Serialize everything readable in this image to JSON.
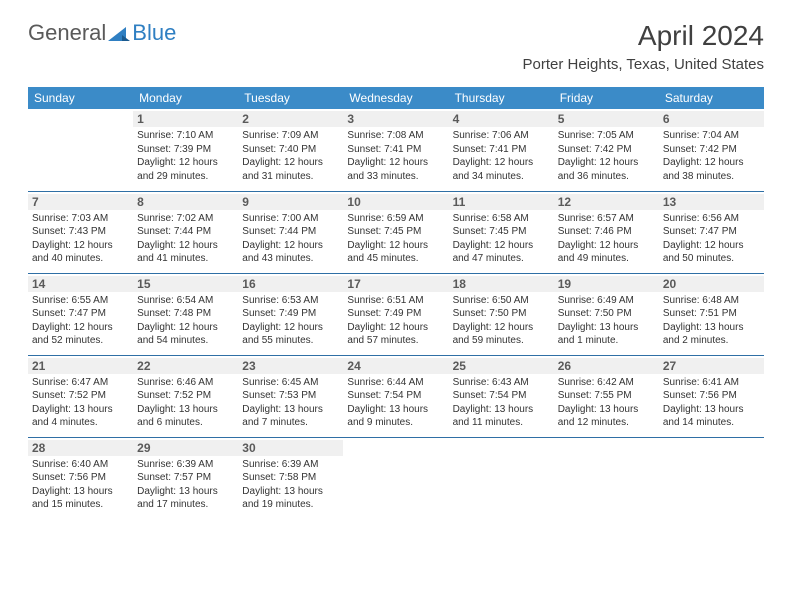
{
  "brand": {
    "part1": "General",
    "part2": "Blue"
  },
  "title": "April 2024",
  "location": "Porter Heights, Texas, United States",
  "colors": {
    "header_bg": "#3b8bc8",
    "header_text": "#ffffff",
    "row_border": "#2f6fa5",
    "daynum_bg": "#f0f0f0",
    "text": "#333333",
    "title_text": "#404040",
    "logo_gray": "#5a5a5a",
    "logo_blue": "#2f7fc2"
  },
  "weekdays": [
    "Sunday",
    "Monday",
    "Tuesday",
    "Wednesday",
    "Thursday",
    "Friday",
    "Saturday"
  ],
  "weeks": [
    [
      null,
      {
        "n": "1",
        "sr": "7:10 AM",
        "ss": "7:39 PM",
        "dl": "12 hours and 29 minutes."
      },
      {
        "n": "2",
        "sr": "7:09 AM",
        "ss": "7:40 PM",
        "dl": "12 hours and 31 minutes."
      },
      {
        "n": "3",
        "sr": "7:08 AM",
        "ss": "7:41 PM",
        "dl": "12 hours and 33 minutes."
      },
      {
        "n": "4",
        "sr": "7:06 AM",
        "ss": "7:41 PM",
        "dl": "12 hours and 34 minutes."
      },
      {
        "n": "5",
        "sr": "7:05 AM",
        "ss": "7:42 PM",
        "dl": "12 hours and 36 minutes."
      },
      {
        "n": "6",
        "sr": "7:04 AM",
        "ss": "7:42 PM",
        "dl": "12 hours and 38 minutes."
      }
    ],
    [
      {
        "n": "7",
        "sr": "7:03 AM",
        "ss": "7:43 PM",
        "dl": "12 hours and 40 minutes."
      },
      {
        "n": "8",
        "sr": "7:02 AM",
        "ss": "7:44 PM",
        "dl": "12 hours and 41 minutes."
      },
      {
        "n": "9",
        "sr": "7:00 AM",
        "ss": "7:44 PM",
        "dl": "12 hours and 43 minutes."
      },
      {
        "n": "10",
        "sr": "6:59 AM",
        "ss": "7:45 PM",
        "dl": "12 hours and 45 minutes."
      },
      {
        "n": "11",
        "sr": "6:58 AM",
        "ss": "7:45 PM",
        "dl": "12 hours and 47 minutes."
      },
      {
        "n": "12",
        "sr": "6:57 AM",
        "ss": "7:46 PM",
        "dl": "12 hours and 49 minutes."
      },
      {
        "n": "13",
        "sr": "6:56 AM",
        "ss": "7:47 PM",
        "dl": "12 hours and 50 minutes."
      }
    ],
    [
      {
        "n": "14",
        "sr": "6:55 AM",
        "ss": "7:47 PM",
        "dl": "12 hours and 52 minutes."
      },
      {
        "n": "15",
        "sr": "6:54 AM",
        "ss": "7:48 PM",
        "dl": "12 hours and 54 minutes."
      },
      {
        "n": "16",
        "sr": "6:53 AM",
        "ss": "7:49 PM",
        "dl": "12 hours and 55 minutes."
      },
      {
        "n": "17",
        "sr": "6:51 AM",
        "ss": "7:49 PM",
        "dl": "12 hours and 57 minutes."
      },
      {
        "n": "18",
        "sr": "6:50 AM",
        "ss": "7:50 PM",
        "dl": "12 hours and 59 minutes."
      },
      {
        "n": "19",
        "sr": "6:49 AM",
        "ss": "7:50 PM",
        "dl": "13 hours and 1 minute."
      },
      {
        "n": "20",
        "sr": "6:48 AM",
        "ss": "7:51 PM",
        "dl": "13 hours and 2 minutes."
      }
    ],
    [
      {
        "n": "21",
        "sr": "6:47 AM",
        "ss": "7:52 PM",
        "dl": "13 hours and 4 minutes."
      },
      {
        "n": "22",
        "sr": "6:46 AM",
        "ss": "7:52 PM",
        "dl": "13 hours and 6 minutes."
      },
      {
        "n": "23",
        "sr": "6:45 AM",
        "ss": "7:53 PM",
        "dl": "13 hours and 7 minutes."
      },
      {
        "n": "24",
        "sr": "6:44 AM",
        "ss": "7:54 PM",
        "dl": "13 hours and 9 minutes."
      },
      {
        "n": "25",
        "sr": "6:43 AM",
        "ss": "7:54 PM",
        "dl": "13 hours and 11 minutes."
      },
      {
        "n": "26",
        "sr": "6:42 AM",
        "ss": "7:55 PM",
        "dl": "13 hours and 12 minutes."
      },
      {
        "n": "27",
        "sr": "6:41 AM",
        "ss": "7:56 PM",
        "dl": "13 hours and 14 minutes."
      }
    ],
    [
      {
        "n": "28",
        "sr": "6:40 AM",
        "ss": "7:56 PM",
        "dl": "13 hours and 15 minutes."
      },
      {
        "n": "29",
        "sr": "6:39 AM",
        "ss": "7:57 PM",
        "dl": "13 hours and 17 minutes."
      },
      {
        "n": "30",
        "sr": "6:39 AM",
        "ss": "7:58 PM",
        "dl": "13 hours and 19 minutes."
      },
      null,
      null,
      null,
      null
    ]
  ]
}
